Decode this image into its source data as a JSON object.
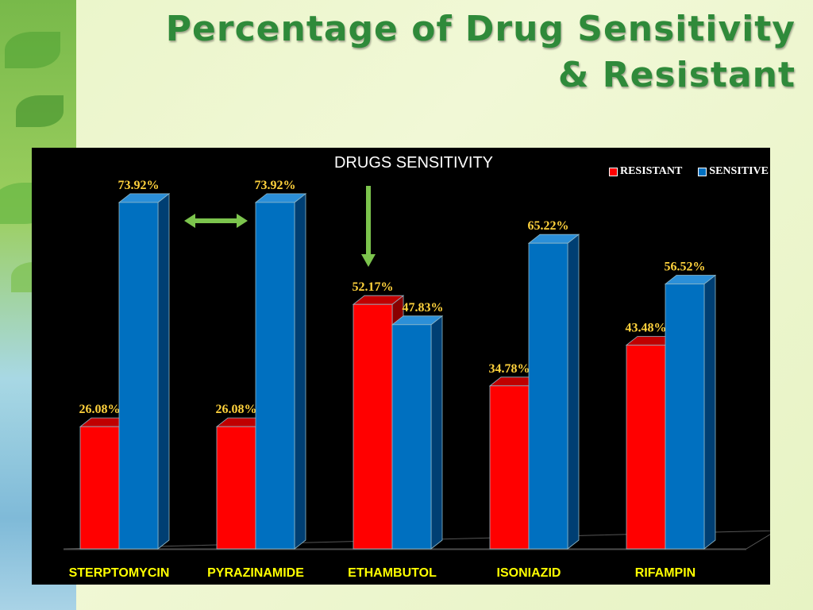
{
  "slide": {
    "title_line1": "Percentage of Drug Sensitivity",
    "title_line2": "& Resistant"
  },
  "colors": {
    "resistant": "#ff0000",
    "sensitive": "#0070c0",
    "value_label": "#ffd23c",
    "category_label": "#ffff00",
    "arrow": "#7cc44d"
  },
  "annotations": [
    {
      "icon": "double-arrow-icon",
      "between": [
        "STERPTOMYCIN",
        "PYRAZINAMIDE"
      ]
    },
    {
      "icon": "down-arrow-icon",
      "target": "ETHAMBUTOL"
    }
  ],
  "chart_data": {
    "type": "bar",
    "title": "DRUGS SENSITIVITY",
    "categories": [
      "STERPTOMYCIN",
      "PYRAZINAMIDE",
      "ETHAMBUTOL",
      "ISONIAZID",
      "RIFAMPIN"
    ],
    "series": [
      {
        "name": "RESISTANT",
        "values": [
          26.08,
          26.08,
          52.17,
          34.78,
          43.48
        ],
        "labels": [
          "26.08%",
          "26.08%",
          "52.17%",
          "34.78%",
          "43.48%"
        ]
      },
      {
        "name": "SENSITIVE",
        "values": [
          73.92,
          73.92,
          47.83,
          65.22,
          56.52
        ],
        "labels": [
          "73.92%",
          "73.92%",
          "47.83%",
          "65.22%",
          "56.52%"
        ]
      }
    ],
    "ylim": [
      0,
      80
    ],
    "grid": false,
    "legend": "top-right"
  }
}
